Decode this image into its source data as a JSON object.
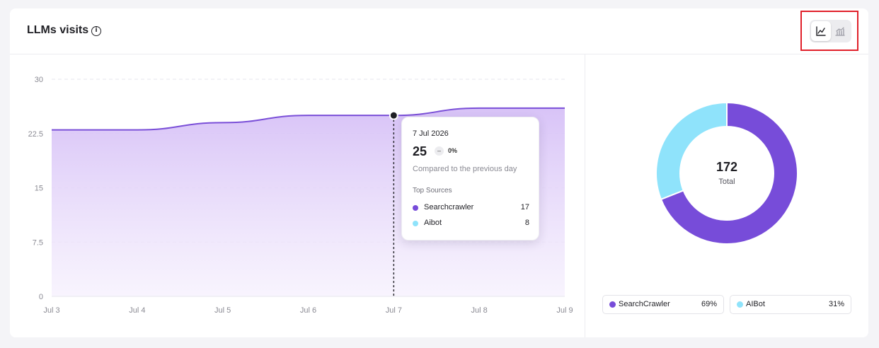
{
  "header": {
    "title": "LLMs visits",
    "info_icon": "info-icon",
    "view_toggle": [
      {
        "icon": "line-chart-icon",
        "active": true
      },
      {
        "icon": "bar-chart-icon",
        "active": false
      }
    ]
  },
  "chart_data": [
    {
      "type": "area",
      "categories": [
        "Jul 3",
        "Jul 4",
        "Jul 5",
        "Jul 6",
        "Jul 7",
        "Jul 8",
        "Jul 9"
      ],
      "series": [
        {
          "values": [
            23,
            23,
            24,
            25,
            25,
            26,
            26
          ],
          "color": "#7a4fd8"
        }
      ],
      "ylim": [
        0,
        30
      ],
      "yticks": [
        "0",
        "7.5",
        "15",
        "22.5",
        "30"
      ],
      "grid": true,
      "highlight_index": 4
    },
    {
      "type": "pie",
      "series": [
        {
          "name": "SearchCrawler",
          "value": 69,
          "color": "#774cd9"
        },
        {
          "name": "AIBot",
          "value": 31,
          "color": "#8fe3fb"
        }
      ],
      "total": "172",
      "total_label": "Total"
    }
  ],
  "tooltip": {
    "date": "7 Jul 2026",
    "value": "25",
    "change_symbol": "–",
    "change": "0%",
    "compare_text": "Compared to the previous day",
    "sources_title": "Top Sources",
    "sources": [
      {
        "name": "Searchcrawler",
        "value": "17",
        "color": "#774cd9"
      },
      {
        "name": "Aibot",
        "value": "8",
        "color": "#8fe3fb"
      }
    ]
  },
  "legend": [
    {
      "name": "SearchCrawler",
      "percent": "69%",
      "color": "#774cd9"
    },
    {
      "name": "AIBot",
      "percent": "31%",
      "color": "#8fe3fb"
    }
  ]
}
